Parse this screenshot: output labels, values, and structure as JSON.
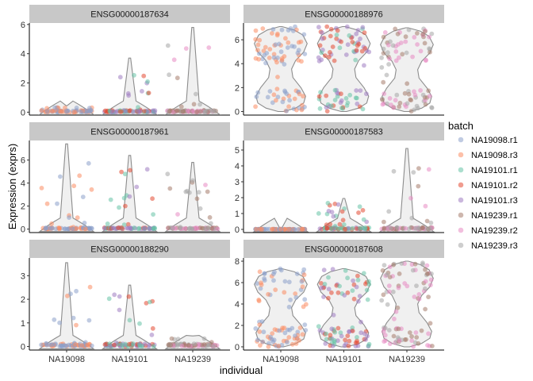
{
  "chart_data": {
    "type": "violin",
    "xlabel": "individual",
    "ylabel": "Expression (exprs)",
    "categories": [
      "NA19098",
      "NA19101",
      "NA19239"
    ],
    "legend": {
      "title": "batch",
      "position": "right",
      "entries": [
        {
          "name": "NA19098.r1",
          "color": "#8DA0CB"
        },
        {
          "name": "NA19098.r3",
          "color": "#FC8D62"
        },
        {
          "name": "NA19101.r1",
          "color": "#66C2A5"
        },
        {
          "name": "NA19101.r2",
          "color": "#E34A33"
        },
        {
          "name": "NA19101.r3",
          "color": "#9E7CC1"
        },
        {
          "name": "NA19239.r1",
          "color": "#A67C6B"
        },
        {
          "name": "NA19239.r2",
          "color": "#E78AC3"
        },
        {
          "name": "NA19239.r3",
          "color": "#A6A6A6"
        }
      ]
    },
    "panels": [
      {
        "gene": "ENSG00000187634",
        "ylim": [
          -0.2,
          6.1
        ],
        "yticks": [
          0,
          2,
          4,
          6
        ],
        "groups": [
          {
            "max": 0.45,
            "profile": "zero",
            "batches": [
              0,
              1
            ]
          },
          {
            "max": 3.7,
            "profile": "zero",
            "batches": [
              2,
              3,
              4
            ]
          },
          {
            "max": 5.8,
            "profile": "zero",
            "batches": [
              5,
              6,
              7
            ]
          }
        ]
      },
      {
        "gene": "ENSG00000188976",
        "ylim": [
          -0.3,
          7.4
        ],
        "yticks": [
          0,
          2,
          4,
          6
        ],
        "groups": [
          {
            "max": 7.1,
            "profile": "bimodal",
            "batches": [
              0,
              1
            ]
          },
          {
            "max": 7.1,
            "profile": "bimodal",
            "batches": [
              2,
              3,
              4
            ]
          },
          {
            "max": 7.0,
            "profile": "bimodal",
            "batches": [
              5,
              6,
              7
            ]
          }
        ]
      },
      {
        "gene": "ENSG00000187961",
        "ylim": [
          -0.3,
          7.7
        ],
        "yticks": [
          0,
          2,
          4,
          6
        ],
        "groups": [
          {
            "max": 7.4,
            "profile": "zero",
            "batches": [
              0,
              1
            ]
          },
          {
            "max": 6.4,
            "profile": "zero",
            "batches": [
              2,
              3,
              4
            ]
          },
          {
            "max": 5.8,
            "profile": "zero",
            "batches": [
              5,
              6,
              7
            ]
          }
        ]
      },
      {
        "gene": "ENSG00000187583",
        "ylim": [
          -0.2,
          5.6
        ],
        "yticks": [
          0,
          1,
          2,
          3,
          4,
          5
        ],
        "groups": [
          {
            "max": 0.02,
            "profile": "zero",
            "batches": [
              0,
              1
            ]
          },
          {
            "max": 1.95,
            "profile": "zero",
            "batches": [
              2,
              3,
              4
            ]
          },
          {
            "max": 5.1,
            "profile": "zero",
            "batches": [
              5,
              6,
              7
            ]
          }
        ]
      },
      {
        "gene": "ENSG00000188290",
        "ylim": [
          -0.15,
          3.75
        ],
        "yticks": [
          0,
          1,
          2,
          3
        ],
        "groups": [
          {
            "max": 3.55,
            "profile": "zero",
            "batches": [
              0,
              1
            ]
          },
          {
            "max": 2.6,
            "profile": "zero",
            "batches": [
              2,
              3,
              4
            ]
          },
          {
            "max": 0.45,
            "profile": "zero",
            "batches": [
              5,
              6,
              7
            ]
          }
        ]
      },
      {
        "gene": "ENSG00000187608",
        "ylim": [
          -0.3,
          8.3
        ],
        "yticks": [
          0,
          2,
          4,
          6,
          8
        ],
        "groups": [
          {
            "max": 7.3,
            "profile": "bimodal",
            "batches": [
              0,
              1
            ]
          },
          {
            "max": 7.3,
            "profile": "bimodal",
            "batches": [
              2,
              3,
              4
            ]
          },
          {
            "max": 8.0,
            "profile": "bimodal",
            "batches": [
              5,
              6,
              7
            ]
          }
        ]
      }
    ]
  }
}
